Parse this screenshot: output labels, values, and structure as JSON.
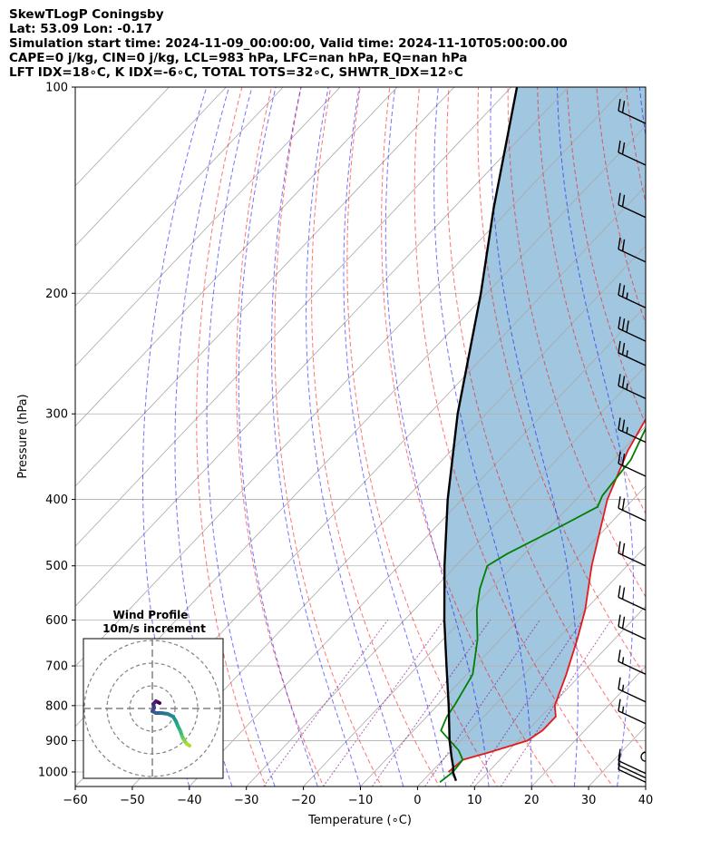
{
  "header": {
    "line1": "SkewTLogP Coningsby",
    "line2": "Lat: 53.09   Lon: -0.17",
    "line3": "Simulation start time: 2024-11-09_00:00:00, Valid time: 2024-11-10T05:00:00.00",
    "line4": "CAPE=0 j/kg, CIN=0 j/kg, LCL=983 hPa, LFC=nan hPa, EQ=nan hPa",
    "line5": "LFT IDX=18∘C, K IDX=-6∘C, TOTAL TOTS=32∘C, SHWTR_IDX=12∘C"
  },
  "inset": {
    "title1": "Wind Profile",
    "title2": "10m/s increment"
  },
  "colors": {
    "temperature": "#e41a1c",
    "dewpoint": "#008000",
    "parcel": "#000000",
    "cin_cape_fill": "#1f77b4",
    "dry_adiabat": "#ff0000",
    "moist_adiabat": "#0000ff",
    "mixing_ratio": "#800080",
    "isotherm": "#a9a9a9"
  },
  "chart_data": {
    "type": "skewt",
    "xlabel": "Temperature (∘C)",
    "ylabel": "Pressure (hPa)",
    "xlim": [
      -60,
      40
    ],
    "ylim": [
      1050,
      100
    ],
    "log_y": true,
    "x_ticks": [
      "−60",
      "−50",
      "−40",
      "−30",
      "−20",
      "−10",
      "0",
      "10",
      "20",
      "30",
      "40"
    ],
    "x_tick_values": [
      -60,
      -50,
      -40,
      -30,
      -20,
      -10,
      0,
      10,
      20,
      30,
      40
    ],
    "y_ticks": [
      "100",
      "200",
      "300",
      "400",
      "500",
      "600",
      "700",
      "800",
      "900",
      "1000"
    ],
    "y_tick_values": [
      100,
      200,
      300,
      400,
      500,
      600,
      700,
      800,
      900,
      1000
    ],
    "grid": true,
    "series": [
      {
        "key": "temperature",
        "points": [
          [
            1000,
            3
          ],
          [
            960,
            3.5
          ],
          [
            935,
            7
          ],
          [
            900,
            11.6
          ],
          [
            870,
            12.6
          ],
          [
            830,
            12.6
          ],
          [
            800,
            10.6
          ],
          [
            720,
            7.4
          ],
          [
            640,
            3.5
          ],
          [
            580,
            0
          ],
          [
            500,
            -6.2
          ],
          [
            400,
            -14.5
          ],
          [
            340,
            -19
          ],
          [
            300,
            -21.5
          ],
          [
            270,
            -24
          ],
          [
            248,
            -26
          ],
          [
            240,
            -27.5
          ],
          [
            220,
            -27
          ],
          [
            200,
            -25
          ],
          [
            170,
            -22
          ],
          [
            150,
            -19
          ],
          [
            130,
            -16
          ],
          [
            115,
            -13
          ],
          [
            100,
            -10.5
          ]
        ]
      },
      {
        "key": "dewpoint",
        "points": [
          [
            1035,
            3.2
          ],
          [
            1000,
            3.8
          ],
          [
            960,
            3.5
          ],
          [
            930,
            1.2
          ],
          [
            870,
            -5.2
          ],
          [
            830,
            -6.5
          ],
          [
            800,
            -7
          ],
          [
            720,
            -9
          ],
          [
            640,
            -14
          ],
          [
            580,
            -19
          ],
          [
            540,
            -22
          ],
          [
            500,
            -24.5
          ],
          [
            480,
            -23
          ],
          [
            445,
            -19
          ],
          [
            410,
            -15
          ],
          [
            395,
            -16
          ],
          [
            350,
            -17
          ],
          [
            310,
            -20
          ],
          [
            290,
            -21
          ],
          [
            260,
            -20.5
          ],
          [
            240,
            -21.5
          ],
          [
            218,
            -22
          ],
          [
            200,
            -22
          ],
          [
            185,
            -24
          ],
          [
            170,
            -26
          ],
          [
            160,
            -27
          ],
          [
            150,
            -27
          ],
          [
            130,
            -25
          ],
          [
            110,
            -23
          ],
          [
            100,
            -21
          ]
        ]
      },
      {
        "key": "parcel",
        "points": [
          [
            1030,
            5.8
          ],
          [
            1000,
            3.8
          ],
          [
            983,
            3
          ],
          [
            950,
            1
          ],
          [
            900,
            -2
          ],
          [
            800,
            -8
          ],
          [
            700,
            -15
          ],
          [
            600,
            -23
          ],
          [
            500,
            -32
          ],
          [
            400,
            -42.5
          ],
          [
            300,
            -55
          ],
          [
            200,
            -71
          ],
          [
            150,
            -83
          ],
          [
            100,
            -99
          ]
        ]
      }
    ],
    "barbs": [
      {
        "p": 100,
        "spd": 20
      },
      {
        "p": 113,
        "spd": 20
      },
      {
        "p": 130,
        "spd": 20
      },
      {
        "p": 155,
        "spd": 20
      },
      {
        "p": 180,
        "spd": 20
      },
      {
        "p": 210,
        "spd": 25
      },
      {
        "p": 235,
        "spd": 30
      },
      {
        "p": 255,
        "spd": 25
      },
      {
        "p": 285,
        "spd": 25
      },
      {
        "p": 330,
        "spd": 25
      },
      {
        "p": 370,
        "spd": 20
      },
      {
        "p": 430,
        "spd": 20
      },
      {
        "p": 500,
        "spd": 20
      },
      {
        "p": 580,
        "spd": 20
      },
      {
        "p": 640,
        "spd": 20
      },
      {
        "p": 720,
        "spd": 15
      },
      {
        "p": 790,
        "spd": 15
      },
      {
        "p": 850,
        "spd": 15
      },
      {
        "p": 950,
        "spd": 0
      },
      {
        "p": 1005,
        "spd": 10
      },
      {
        "p": 1020,
        "spd": 10
      },
      {
        "p": 1035,
        "spd": 5
      }
    ],
    "hodograph_rings_ms": [
      10,
      20,
      30
    ]
  }
}
